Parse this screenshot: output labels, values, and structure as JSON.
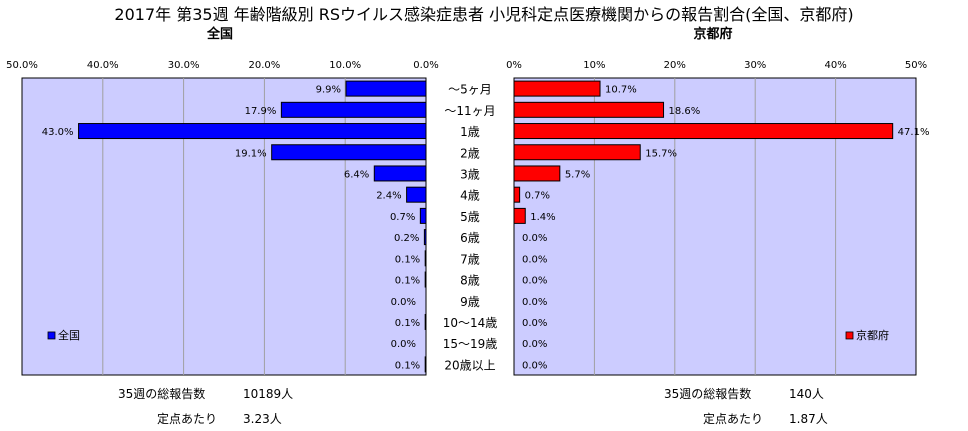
{
  "title": "2017年 第35週 年齢階級別 RSウイルス感染症患者 小児科定点医療機関からの報告割合(全国、京都府)",
  "chart_data": [
    {
      "type": "bar",
      "orientation": "horizontal",
      "direction": "right-to-left",
      "panel_title": "全国",
      "categories": [
        "～5ヶ月",
        "～11ヶ月",
        "1歳",
        "2歳",
        "3歳",
        "4歳",
        "5歳",
        "6歳",
        "7歳",
        "8歳",
        "9歳",
        "10～14歳",
        "15～19歳",
        "20歳以上"
      ],
      "series": [
        {
          "name": "全国",
          "color": "#0000ff",
          "values": [
            9.9,
            17.9,
            43.0,
            19.1,
            6.4,
            2.4,
            0.7,
            0.2,
            0.1,
            0.1,
            0.0,
            0.1,
            0.0,
            0.1
          ],
          "labels": [
            "9.9%",
            "17.9%",
            "43.0%",
            "19.1%",
            "6.4%",
            "2.4%",
            "0.7%",
            "0.2%",
            "0.1%",
            "0.1%",
            "0.0%",
            "0.1%",
            "0.0%",
            "0.1%"
          ]
        }
      ],
      "xlim": [
        0,
        50
      ],
      "ticks": [
        "50.0%",
        "40.0%",
        "30.0%",
        "20.0%",
        "10.0%",
        "0.0%"
      ],
      "grid": true,
      "legend_position": "bottom-left",
      "plot_background": "#ccccff"
    },
    {
      "type": "bar",
      "orientation": "horizontal",
      "direction": "left-to-right",
      "panel_title": "京都府",
      "categories": [
        "～5ヶ月",
        "～11ヶ月",
        "1歳",
        "2歳",
        "3歳",
        "4歳",
        "5歳",
        "6歳",
        "7歳",
        "8歳",
        "9歳",
        "10～14歳",
        "15～19歳",
        "20歳以上"
      ],
      "series": [
        {
          "name": "京都府",
          "color": "#ff0000",
          "values": [
            10.7,
            18.6,
            47.1,
            15.7,
            5.7,
            0.7,
            1.4,
            0.0,
            0.0,
            0.0,
            0.0,
            0.0,
            0.0,
            0.0
          ],
          "labels": [
            "10.7%",
            "18.6%",
            "47.1%",
            "15.7%",
            "5.7%",
            "0.7%",
            "1.4%",
            "0.0%",
            "0.0%",
            "0.0%",
            "0.0%",
            "0.0%",
            "0.0%",
            "0.0%"
          ]
        }
      ],
      "xlim": [
        0,
        50
      ],
      "ticks": [
        "0%",
        "10%",
        "20%",
        "30%",
        "40%",
        "50%"
      ],
      "grid": true,
      "legend_position": "bottom-right",
      "plot_background": "#ccccff"
    }
  ],
  "footer": {
    "national_total_label": "35週の総報告数",
    "national_total_value": "10189人",
    "national_per_label": "定点あたり",
    "national_per_value": "3.23人",
    "kyoto_total_label": "35週の総報告数",
    "kyoto_total_value": "140人",
    "kyoto_per_label": "定点あたり",
    "kyoto_per_value": "1.87人"
  }
}
